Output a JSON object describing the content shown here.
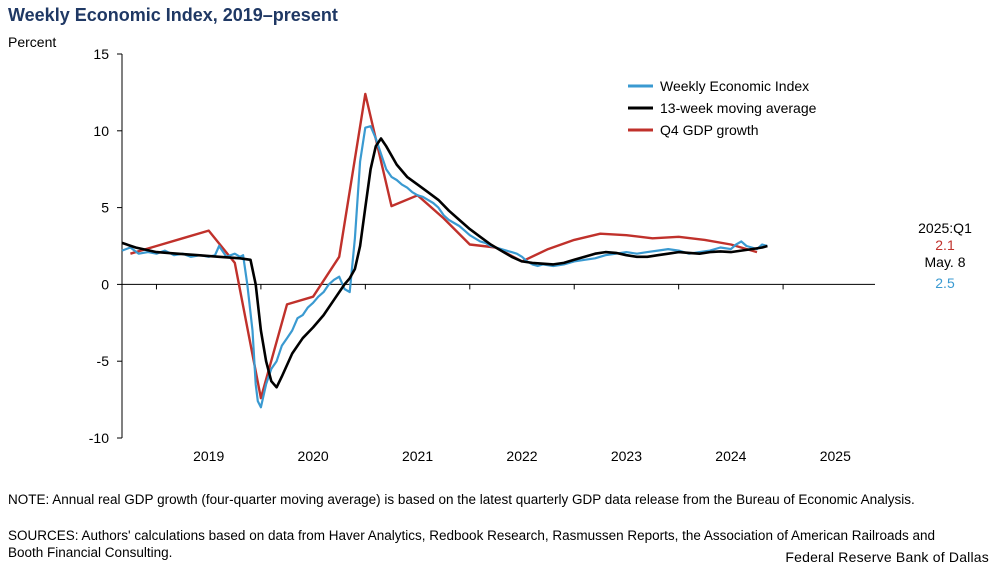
{
  "title": "Weekly Economic Index, 2019–present",
  "note": "NOTE: Annual real GDP growth (four-quarter moving average) is based on the latest quarterly GDP data release from the Bureau of Economic Analysis.",
  "sources": "SOURCES: Authors' calculations based on data from Haver Analytics, Redbook Research, Rasmussen Reports, the Association of American Railroads and Booth Financial Consulting.",
  "credit": "Federal Reserve Bank of Dallas",
  "colors": {
    "wei": "#3a9ad1",
    "ma": "#000000",
    "gdp": "#c0312b",
    "title": "#1f3864"
  },
  "chart_data": {
    "type": "line",
    "title": "Weekly Economic Index, 2019–present",
    "ylabel": "Percent",
    "xlabel": "",
    "ylim": [
      -10,
      15
    ],
    "xlim": [
      2018.17,
      2025.38
    ],
    "yticks": [
      -10,
      -5,
      0,
      5,
      10,
      15
    ],
    "xticks": [
      "2019",
      "2020",
      "2021",
      "2022",
      "2023",
      "2024",
      "2025"
    ],
    "legend_position": "top-right",
    "grid": false,
    "series": [
      {
        "name": "Weekly Economic Index",
        "color": "#3a9ad1",
        "x": [
          2018.17,
          2018.25,
          2018.33,
          2018.42,
          2018.5,
          2018.58,
          2018.67,
          2018.75,
          2018.83,
          2018.92,
          2019.0,
          2019.06,
          2019.1,
          2019.17,
          2019.25,
          2019.3,
          2019.33,
          2019.37,
          2019.42,
          2019.45,
          2019.47,
          2019.5,
          2019.55,
          2019.6,
          2019.65,
          2019.7,
          2019.75,
          2019.8,
          2019.85,
          2019.9,
          2019.95,
          2020.0,
          2020.05,
          2020.1,
          2020.15,
          2020.2,
          2020.25,
          2020.3,
          2020.35,
          2020.4,
          2020.45,
          2020.5,
          2020.55,
          2020.6,
          2020.65,
          2020.7,
          2020.75,
          2020.8,
          2020.85,
          2020.9,
          2020.95,
          2021.0,
          2021.05,
          2021.1,
          2021.15,
          2021.2,
          2021.25,
          2021.3,
          2021.35,
          2021.4,
          2021.45,
          2021.5,
          2021.55,
          2021.6,
          2021.65,
          2021.7,
          2021.75,
          2021.8,
          2021.85,
          2021.9,
          2021.95,
          2022.0,
          2022.05,
          2022.1,
          2022.15,
          2022.2,
          2022.3,
          2022.4,
          2022.5,
          2022.6,
          2022.7,
          2022.8,
          2022.9,
          2023.0,
          2023.1,
          2023.2,
          2023.3,
          2023.4,
          2023.5,
          2023.6,
          2023.7,
          2023.8,
          2023.9,
          2024.0,
          2024.05,
          2024.1,
          2024.15,
          2024.2,
          2024.25,
          2024.3,
          2024.35
        ],
        "y": [
          2.2,
          2.4,
          2.0,
          2.1,
          2.0,
          2.2,
          1.9,
          2.0,
          1.8,
          1.9,
          1.8,
          1.9,
          2.5,
          1.8,
          2.0,
          1.8,
          1.9,
          0.0,
          -3.0,
          -6.5,
          -7.6,
          -8.0,
          -6.5,
          -5.5,
          -5.0,
          -4.0,
          -3.5,
          -3.0,
          -2.2,
          -2.0,
          -1.5,
          -1.2,
          -0.8,
          -0.5,
          0.0,
          0.3,
          0.5,
          -0.3,
          -0.5,
          3.0,
          8.0,
          10.2,
          10.3,
          9.5,
          8.5,
          7.5,
          7.0,
          6.8,
          6.5,
          6.3,
          6.0,
          5.8,
          5.7,
          5.5,
          5.3,
          5.0,
          4.5,
          4.2,
          4.0,
          3.8,
          3.5,
          3.2,
          3.0,
          2.8,
          2.7,
          2.5,
          2.4,
          2.3,
          2.2,
          2.1,
          2.0,
          1.8,
          1.5,
          1.3,
          1.2,
          1.3,
          1.2,
          1.3,
          1.5,
          1.6,
          1.7,
          1.9,
          2.0,
          2.1,
          2.0,
          2.1,
          2.2,
          2.3,
          2.2,
          2.0,
          2.1,
          2.2,
          2.4,
          2.3,
          2.6,
          2.8,
          2.5,
          2.4,
          2.3,
          2.6,
          2.5
        ]
      },
      {
        "name": "13-week moving average",
        "color": "#000000",
        "x": [
          2018.17,
          2018.3,
          2018.5,
          2018.7,
          2018.9,
          2019.1,
          2019.3,
          2019.4,
          2019.45,
          2019.5,
          2019.55,
          2019.6,
          2019.65,
          2019.7,
          2019.8,
          2019.9,
          2020.0,
          2020.1,
          2020.2,
          2020.3,
          2020.35,
          2020.4,
          2020.45,
          2020.5,
          2020.55,
          2020.6,
          2020.65,
          2020.7,
          2020.8,
          2020.9,
          2021.0,
          2021.1,
          2021.2,
          2021.3,
          2021.4,
          2021.5,
          2021.6,
          2021.7,
          2021.8,
          2021.9,
          2022.0,
          2022.1,
          2022.2,
          2022.3,
          2022.4,
          2022.5,
          2022.6,
          2022.7,
          2022.8,
          2022.9,
          2023.0,
          2023.1,
          2023.2,
          2023.3,
          2023.4,
          2023.5,
          2023.6,
          2023.7,
          2023.8,
          2023.9,
          2024.0,
          2024.1,
          2024.2,
          2024.3,
          2024.35
        ],
        "y": [
          2.7,
          2.4,
          2.1,
          2.0,
          1.9,
          1.8,
          1.7,
          1.6,
          0.0,
          -3.0,
          -5.0,
          -6.3,
          -6.7,
          -6.0,
          -4.5,
          -3.5,
          -2.8,
          -2.0,
          -1.0,
          0.0,
          0.4,
          1.0,
          2.5,
          5.0,
          7.5,
          9.0,
          9.5,
          9.0,
          7.8,
          7.0,
          6.5,
          6.0,
          5.5,
          4.8,
          4.2,
          3.6,
          3.1,
          2.6,
          2.2,
          1.8,
          1.5,
          1.4,
          1.35,
          1.3,
          1.4,
          1.6,
          1.8,
          2.0,
          2.1,
          2.05,
          1.9,
          1.8,
          1.8,
          1.9,
          2.0,
          2.1,
          2.05,
          2.0,
          2.1,
          2.15,
          2.1,
          2.2,
          2.3,
          2.4,
          2.5
        ]
      },
      {
        "name": "Q4 GDP growth",
        "color": "#c0312b",
        "x": [
          2018.25,
          2018.5,
          2018.75,
          2019.0,
          2019.25,
          2019.5,
          2019.75,
          2020.0,
          2020.25,
          2020.5,
          2020.75,
          2021.0,
          2021.25,
          2021.5,
          2021.75,
          2022.0,
          2022.25,
          2022.5,
          2022.75,
          2023.0,
          2023.25,
          2023.5,
          2023.75,
          2024.0,
          2024.25
        ],
        "y": [
          2.0,
          2.5,
          3.0,
          3.5,
          1.4,
          -7.4,
          -1.3,
          -0.8,
          1.8,
          12.4,
          5.1,
          5.8,
          4.3,
          2.6,
          2.4,
          1.5,
          2.3,
          2.9,
          3.3,
          3.2,
          3.0,
          3.1,
          2.9,
          2.6,
          2.1
        ]
      }
    ],
    "annotations": [
      {
        "label": "2025:Q1",
        "value": "2.1",
        "color": "#c0312b"
      },
      {
        "label": "May. 8",
        "value": "2.5",
        "color": "#3a9ad1"
      }
    ]
  }
}
